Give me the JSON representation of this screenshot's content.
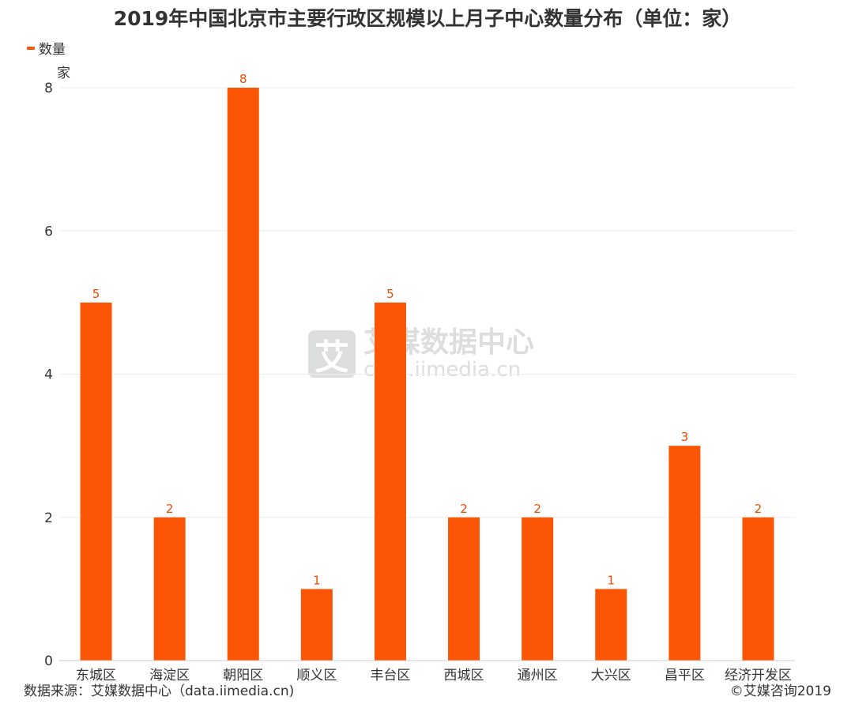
{
  "title": "2019年中国北京市主要行政区规模以上月子中心数量分布（单位：家）",
  "legend": {
    "label": "数量",
    "color": "#fc5506"
  },
  "unit_label": "家",
  "source": "数据来源：艾媒数据中心（data.iimedia.cn)",
  "copyright": "©艾媒咨询2019",
  "watermark": {
    "logo_char": "艾",
    "name": "艾媒数据中心",
    "url": "cata.iimedia.cn"
  },
  "colors": {
    "bar": "#fc5506",
    "label": "#e64b00",
    "grid": "#eeeeee",
    "axis": "#cccccc"
  },
  "chart_data": {
    "type": "bar",
    "categories": [
      "东城区",
      "海淀区",
      "朝阳区",
      "顺义区",
      "丰台区",
      "西城区",
      "通州区",
      "大兴区",
      "昌平区",
      "经济开发区"
    ],
    "series": [
      {
        "name": "数量",
        "values": [
          5,
          2,
          8,
          1,
          5,
          2,
          2,
          1,
          3,
          2
        ]
      }
    ],
    "ylabel": "家",
    "ylim": [
      0,
      8
    ],
    "yticks": [
      0,
      2,
      4,
      6,
      8
    ],
    "grid": true,
    "legend_position": "top-left"
  }
}
